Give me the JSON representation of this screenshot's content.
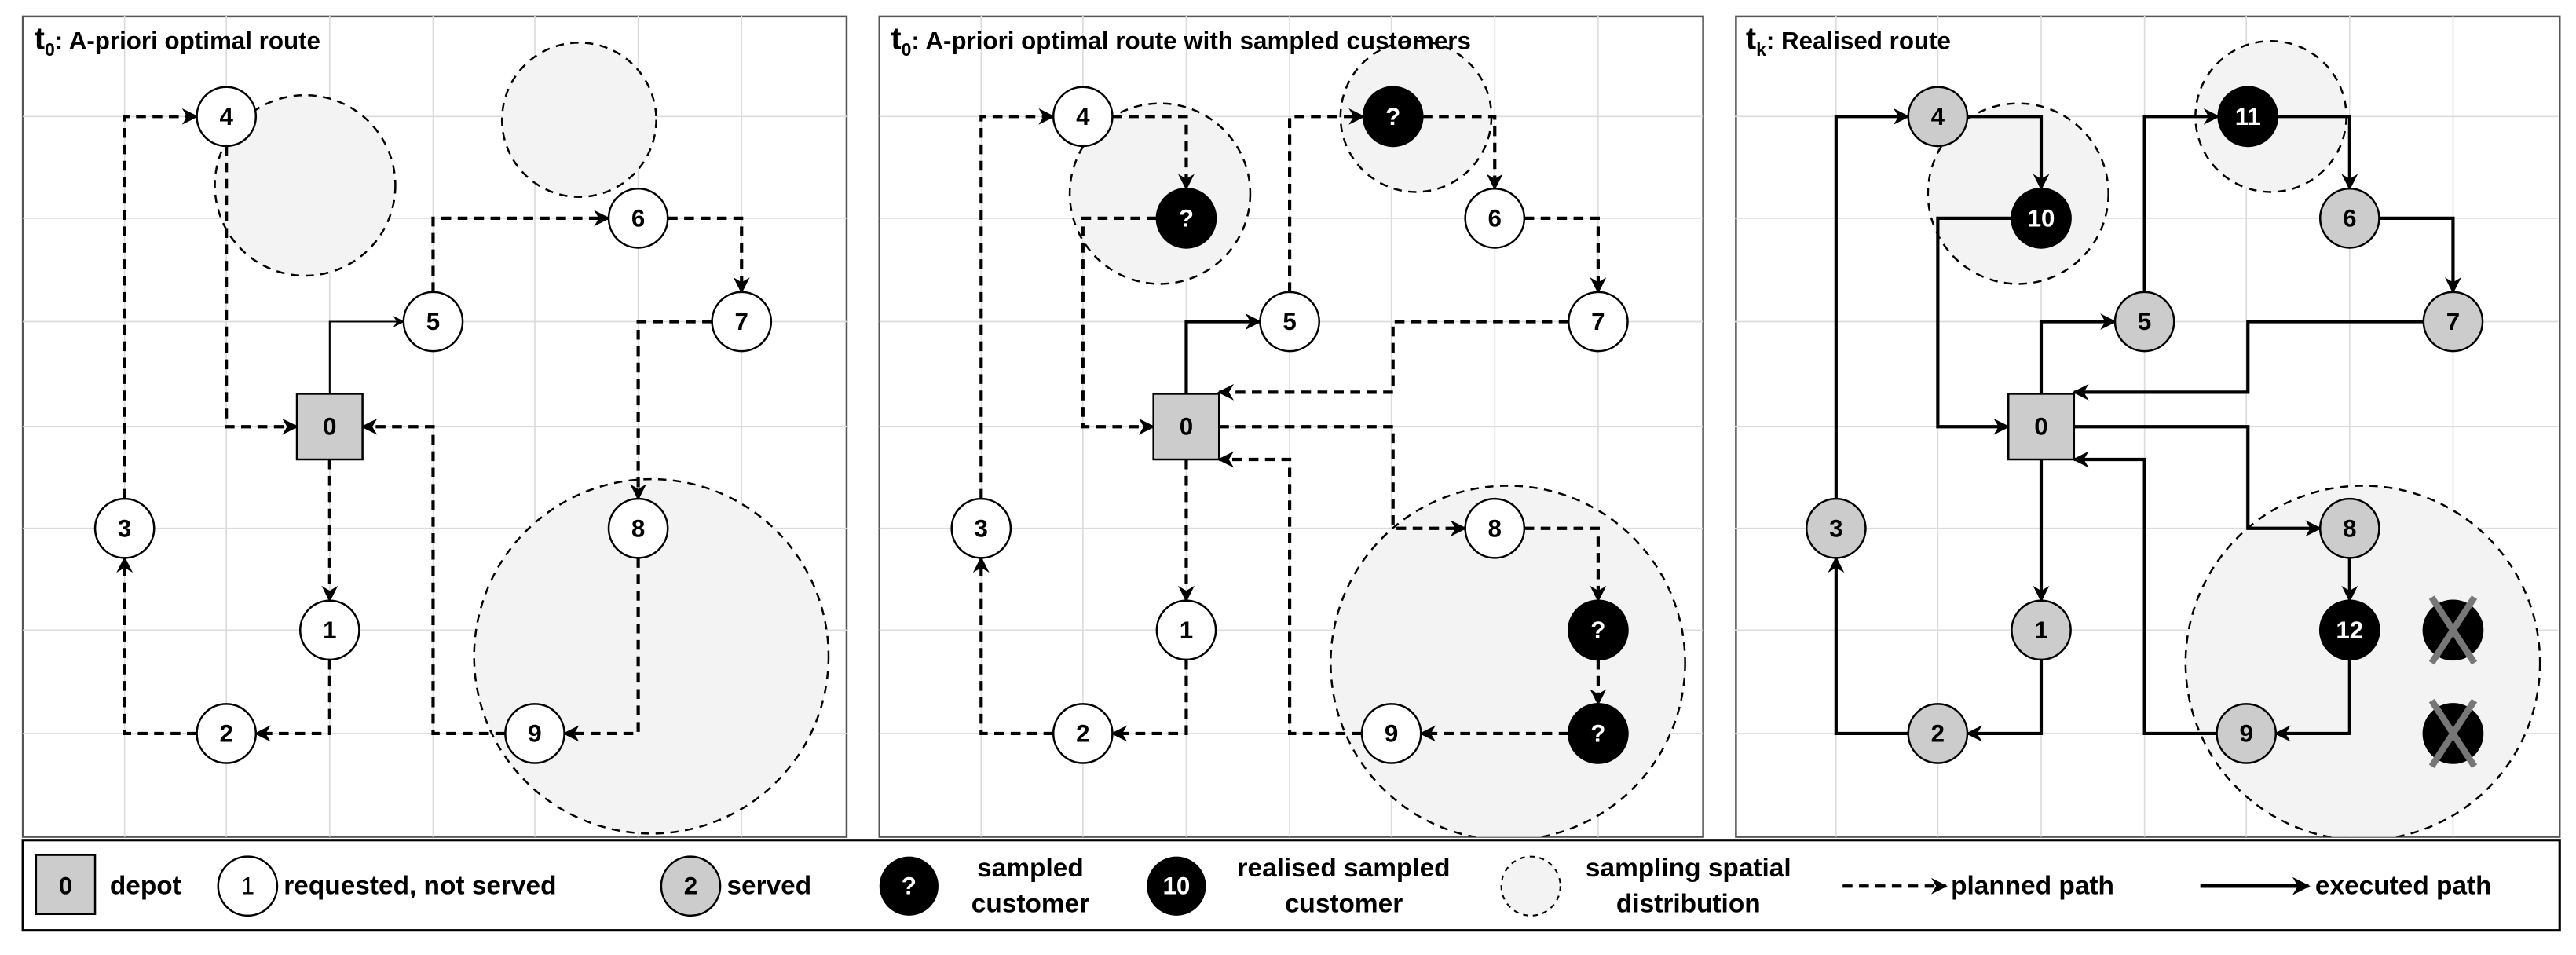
{
  "colors": {
    "depot": "#cccccc",
    "requested": "#ffffff",
    "served": "#cccccc",
    "sampled": "#000000",
    "distribution": "#f3f3f3",
    "cross": "#777777"
  },
  "panels": [
    {
      "title_main": "t",
      "title_sub": "0",
      "title_rest": ": A-priori optimal route",
      "nodes": [
        {
          "id": "0",
          "label": "0",
          "state": "depot"
        },
        {
          "id": "1",
          "label": "1",
          "state": "requested"
        },
        {
          "id": "2",
          "label": "2",
          "state": "requested"
        },
        {
          "id": "3",
          "label": "3",
          "state": "requested"
        },
        {
          "id": "4",
          "label": "4",
          "state": "requested"
        },
        {
          "id": "5",
          "label": "5",
          "state": "requested"
        },
        {
          "id": "6",
          "label": "6",
          "state": "requested"
        },
        {
          "id": "7",
          "label": "7",
          "state": "requested"
        },
        {
          "id": "8",
          "label": "8",
          "state": "requested"
        },
        {
          "id": "9",
          "label": "9",
          "state": "requested"
        }
      ],
      "edges": [
        {
          "from": "0",
          "to": "5",
          "style": "thin"
        },
        {
          "from": "5",
          "to": "6",
          "style": "planned"
        },
        {
          "from": "6",
          "to": "7",
          "style": "planned"
        },
        {
          "from": "7",
          "to": "8",
          "style": "planned"
        },
        {
          "from": "8",
          "to": "9",
          "style": "planned"
        },
        {
          "from": "9",
          "to": "0",
          "style": "planned"
        },
        {
          "from": "0",
          "to": "1",
          "style": "planned"
        },
        {
          "from": "1",
          "to": "2",
          "style": "planned"
        },
        {
          "from": "2",
          "to": "3",
          "style": "planned"
        },
        {
          "from": "3",
          "to": "4",
          "style": "planned"
        },
        {
          "from": "4",
          "to": "0",
          "style": "planned"
        }
      ]
    },
    {
      "title_main": "t",
      "title_sub": "0",
      "title_rest": ": A-priori optimal route with sampled customers",
      "nodes": [
        {
          "id": "0",
          "label": "0",
          "state": "depot"
        },
        {
          "id": "1",
          "label": "1",
          "state": "requested"
        },
        {
          "id": "2",
          "label": "2",
          "state": "requested"
        },
        {
          "id": "3",
          "label": "3",
          "state": "requested"
        },
        {
          "id": "4",
          "label": "4",
          "state": "requested"
        },
        {
          "id": "5",
          "label": "5",
          "state": "requested"
        },
        {
          "id": "6",
          "label": "6",
          "state": "requested"
        },
        {
          "id": "7",
          "label": "7",
          "state": "requested"
        },
        {
          "id": "8",
          "label": "8",
          "state": "requested"
        },
        {
          "id": "9",
          "label": "9",
          "state": "requested"
        },
        {
          "id": "s1",
          "label": "?",
          "state": "sampled"
        },
        {
          "id": "s2",
          "label": "?",
          "state": "sampled"
        },
        {
          "id": "s3",
          "label": "?",
          "state": "sampled"
        },
        {
          "id": "s4",
          "label": "?",
          "state": "sampled"
        }
      ],
      "edges": [
        {
          "from": "0",
          "to": "5",
          "style": "executed"
        },
        {
          "from": "5",
          "to": "s2",
          "style": "planned"
        },
        {
          "from": "s2",
          "to": "6",
          "style": "planned"
        },
        {
          "from": "6",
          "to": "7",
          "style": "planned"
        },
        {
          "from": "7",
          "to": "0",
          "style": "planned"
        },
        {
          "from": "0",
          "to": "8",
          "style": "planned"
        },
        {
          "from": "8",
          "to": "s3",
          "style": "planned"
        },
        {
          "from": "s3",
          "to": "s4",
          "style": "planned"
        },
        {
          "from": "s4",
          "to": "9",
          "style": "planned"
        },
        {
          "from": "9",
          "to": "0",
          "style": "planned"
        },
        {
          "from": "0",
          "to": "1",
          "style": "planned"
        },
        {
          "from": "1",
          "to": "2",
          "style": "planned"
        },
        {
          "from": "2",
          "to": "3",
          "style": "planned"
        },
        {
          "from": "3",
          "to": "4",
          "style": "planned"
        },
        {
          "from": "4",
          "to": "s1",
          "style": "planned"
        },
        {
          "from": "s1",
          "to": "0",
          "style": "planned"
        }
      ]
    },
    {
      "title_main": "t",
      "title_sub": "k",
      "title_rest": ": Realised route",
      "nodes": [
        {
          "id": "0",
          "label": "0",
          "state": "depot"
        },
        {
          "id": "1",
          "label": "1",
          "state": "served"
        },
        {
          "id": "2",
          "label": "2",
          "state": "served"
        },
        {
          "id": "3",
          "label": "3",
          "state": "served"
        },
        {
          "id": "4",
          "label": "4",
          "state": "served"
        },
        {
          "id": "5",
          "label": "5",
          "state": "served"
        },
        {
          "id": "6",
          "label": "6",
          "state": "served"
        },
        {
          "id": "7",
          "label": "7",
          "state": "served"
        },
        {
          "id": "8",
          "label": "8",
          "state": "served"
        },
        {
          "id": "9",
          "label": "9",
          "state": "served"
        },
        {
          "id": "r10",
          "label": "10",
          "state": "realised"
        },
        {
          "id": "r11",
          "label": "11",
          "state": "realised"
        },
        {
          "id": "r12",
          "label": "12",
          "state": "realised"
        },
        {
          "id": "x1",
          "label": "",
          "state": "discarded"
        },
        {
          "id": "x2",
          "label": "",
          "state": "discarded"
        }
      ],
      "edges": [
        {
          "from": "0",
          "to": "5",
          "style": "executed"
        },
        {
          "from": "5",
          "to": "r11",
          "style": "executed"
        },
        {
          "from": "r11",
          "to": "6",
          "style": "executed"
        },
        {
          "from": "6",
          "to": "7",
          "style": "executed"
        },
        {
          "from": "7",
          "to": "0",
          "style": "executed"
        },
        {
          "from": "0",
          "to": "8",
          "style": "executed"
        },
        {
          "from": "8",
          "to": "r12",
          "style": "executed"
        },
        {
          "from": "r12",
          "to": "9",
          "style": "executed"
        },
        {
          "from": "9",
          "to": "0",
          "style": "executed"
        },
        {
          "from": "0",
          "to": "1",
          "style": "executed"
        },
        {
          "from": "1",
          "to": "2",
          "style": "executed"
        },
        {
          "from": "2",
          "to": "3",
          "style": "executed"
        },
        {
          "from": "3",
          "to": "4",
          "style": "executed"
        },
        {
          "from": "4",
          "to": "r10",
          "style": "executed"
        },
        {
          "from": "r10",
          "to": "0",
          "style": "executed"
        }
      ]
    }
  ],
  "legend": {
    "depot_symbol": "0",
    "depot": "depot",
    "requested_symbol": "1",
    "requested": "requested, not served",
    "served_symbol": "2",
    "served": "served",
    "sampled_symbol": "?",
    "sampled_1": "sampled",
    "sampled_2": "customer",
    "realised_symbol": "10",
    "realised_1": "realised sampled",
    "realised_2": "customer",
    "distribution_1": "sampling spatial",
    "distribution_2": "distribution",
    "planned": "planned path",
    "executed": "executed path"
  }
}
